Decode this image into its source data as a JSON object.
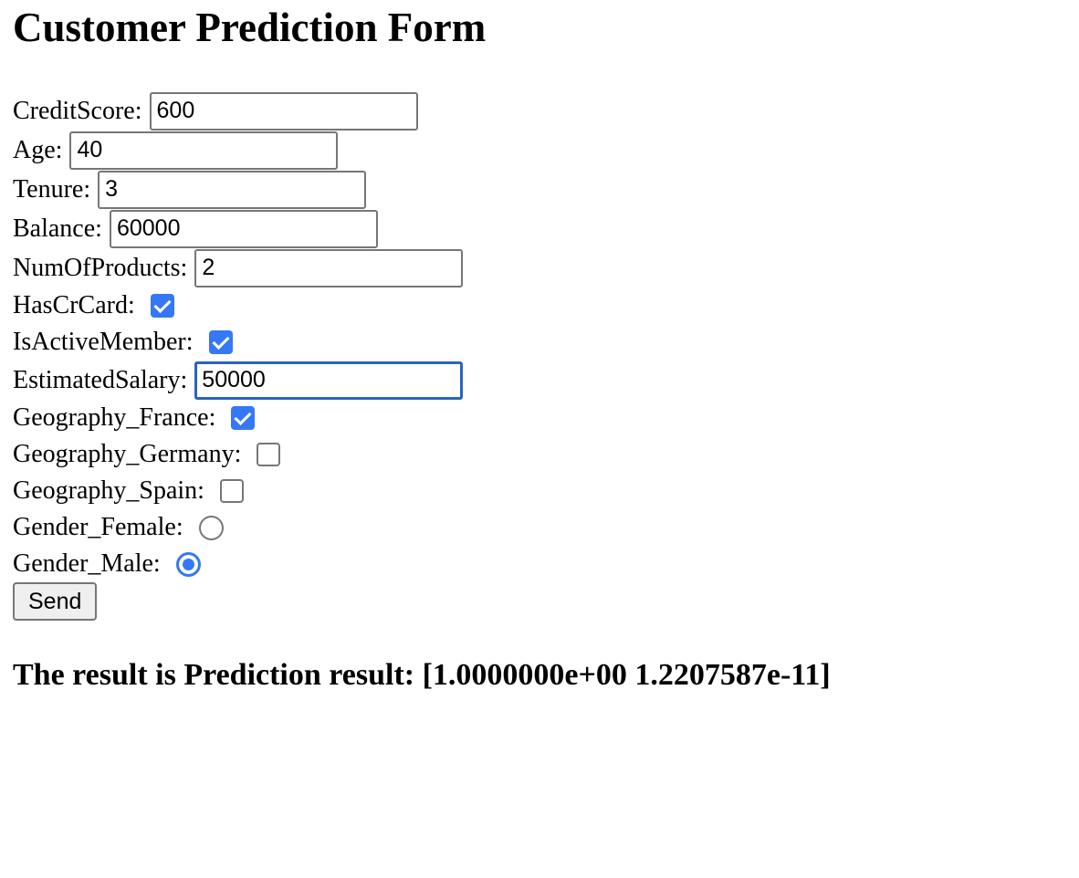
{
  "page": {
    "title": "Customer Prediction Form"
  },
  "form": {
    "credit_score": {
      "label": "CreditScore:",
      "value": "600"
    },
    "age": {
      "label": "Age:",
      "value": "40"
    },
    "tenure": {
      "label": "Tenure:",
      "value": "3"
    },
    "balance": {
      "label": "Balance:",
      "value": "60000"
    },
    "num_of_products": {
      "label": "NumOfProducts:",
      "value": "2"
    },
    "has_cr_card": {
      "label": "HasCrCard:",
      "checked": true
    },
    "is_active_member": {
      "label": "IsActiveMember:",
      "checked": true
    },
    "estimated_salary": {
      "label": "EstimatedSalary:",
      "value": "50000",
      "focused": true
    },
    "geography_france": {
      "label": "Geography_France:",
      "checked": true
    },
    "geography_germany": {
      "label": "Geography_Germany:",
      "checked": false
    },
    "geography_spain": {
      "label": "Geography_Spain:",
      "checked": false
    },
    "gender_female": {
      "label": "Gender_Female:",
      "checked": false
    },
    "gender_male": {
      "label": "Gender_Male:",
      "checked": true
    },
    "submit_label": "Send"
  },
  "result": {
    "text": "The result is Prediction result: [1.0000000e+00 1.2207587e-11]"
  },
  "colors": {
    "accent": "#3478f6",
    "focus_border": "#2a63c4",
    "input_border": "#767676"
  }
}
